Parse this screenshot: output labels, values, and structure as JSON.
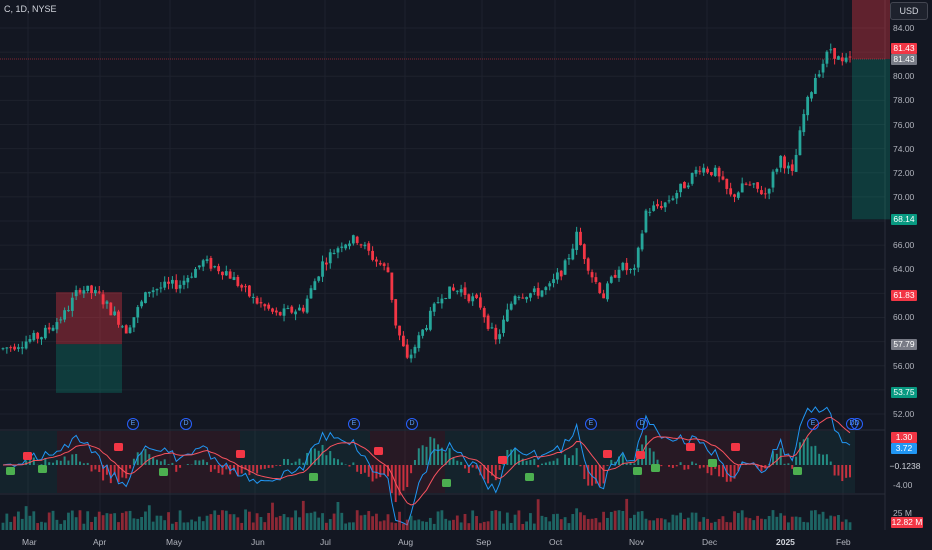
{
  "header": {
    "title": "C, 1D, NYSE"
  },
  "currency": "USD",
  "price_axis": {
    "ticks": [
      "84.00",
      "82.00",
      "80.00",
      "78.00",
      "76.00",
      "74.00",
      "72.00",
      "70.00",
      "66.00",
      "64.00",
      "62.00",
      "60.00",
      "58.00",
      "56.00",
      "54.00",
      "52.00"
    ]
  },
  "price_labels": {
    "last_red": "81.43",
    "last_gray": "81.43",
    "tp": "68.14",
    "red_mark": "61.83",
    "gray_mark": "57.79",
    "green_mark": "53.75"
  },
  "oscillator": {
    "labels": [
      "-4.00"
    ],
    "value_a": "1.30",
    "value_b": "3.72",
    "value_c": "−0.1238"
  },
  "volume": {
    "scale": "25 M",
    "value": "12.82 M"
  },
  "time_axis": [
    "Mar",
    "Apr",
    "May",
    "Jun",
    "Jul",
    "Aug",
    "Sep",
    "Oct",
    "Nov",
    "Dec",
    "2025",
    "Feb"
  ],
  "event_markers": [
    "E",
    "D",
    "E",
    "D",
    "E",
    "D",
    "E",
    "D",
    "D"
  ],
  "colors": {
    "up": "#26a69a",
    "down": "#f23645",
    "background": "#131722",
    "grid": "#1e222d"
  },
  "chart_data": {
    "type": "candlestick",
    "symbol": "C",
    "interval": "1D",
    "exchange": "NYSE",
    "ylim": [
      51,
      86
    ],
    "last_price": 81.43,
    "trend_points": [
      {
        "t": 0,
        "v": 57.4
      },
      {
        "t": 10,
        "v": 58.5
      },
      {
        "t": 16,
        "v": 60.3
      },
      {
        "t": 20,
        "v": 62.5
      },
      {
        "t": 25,
        "v": 61.8
      },
      {
        "t": 32,
        "v": 59.0
      },
      {
        "t": 38,
        "v": 62.3
      },
      {
        "t": 46,
        "v": 62.8
      },
      {
        "t": 52,
        "v": 64.6
      },
      {
        "t": 58,
        "v": 63.8
      },
      {
        "t": 65,
        "v": 61.5
      },
      {
        "t": 71,
        "v": 60.2
      },
      {
        "t": 78,
        "v": 60.8
      },
      {
        "t": 83,
        "v": 64.5
      },
      {
        "t": 88,
        "v": 66.2
      },
      {
        "t": 92,
        "v": 66.5
      },
      {
        "t": 96,
        "v": 65.0
      },
      {
        "t": 100,
        "v": 63.8
      },
      {
        "t": 102,
        "v": 59.5
      },
      {
        "t": 105,
        "v": 56.4
      },
      {
        "t": 110,
        "v": 59.5
      },
      {
        "t": 114,
        "v": 62.0
      },
      {
        "t": 119,
        "v": 62.3
      },
      {
        "t": 124,
        "v": 61.0
      },
      {
        "t": 128,
        "v": 58.0
      },
      {
        "t": 133,
        "v": 62.0
      },
      {
        "t": 138,
        "v": 62.0
      },
      {
        "t": 142,
        "v": 62.5
      },
      {
        "t": 146,
        "v": 64.3
      },
      {
        "t": 149,
        "v": 66.8
      },
      {
        "t": 153,
        "v": 63.5
      },
      {
        "t": 156,
        "v": 61.8
      },
      {
        "t": 160,
        "v": 64.3
      },
      {
        "t": 164,
        "v": 63.7
      },
      {
        "t": 167,
        "v": 68.8
      },
      {
        "t": 172,
        "v": 69.5
      },
      {
        "t": 177,
        "v": 71.0
      },
      {
        "t": 181,
        "v": 72.5
      },
      {
        "t": 185,
        "v": 72.0
      },
      {
        "t": 189,
        "v": 70.0
      },
      {
        "t": 193,
        "v": 71.0
      },
      {
        "t": 198,
        "v": 70.3
      },
      {
        "t": 202,
        "v": 73.3
      },
      {
        "t": 205,
        "v": 71.8
      },
      {
        "t": 208,
        "v": 76.8
      },
      {
        "t": 211,
        "v": 80.0
      },
      {
        "t": 215,
        "v": 82.3
      },
      {
        "t": 218,
        "v": 81.0
      },
      {
        "t": 220,
        "v": 81.4
      }
    ],
    "gaps": [
      100,
      164,
      205
    ]
  }
}
